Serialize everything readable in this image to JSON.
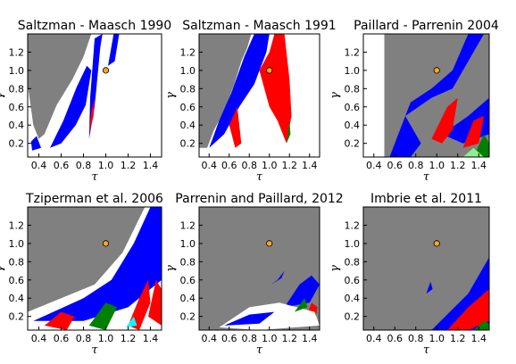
{
  "chart_data": [
    {
      "type": "heatmap",
      "title": "Saltzman - Maasch 1990",
      "xlabel": "τ",
      "ylabel": "γ",
      "xlim": [
        0.3,
        1.5
      ],
      "ylim": [
        0.05,
        1.4
      ],
      "xticks": [
        "0.4",
        "0.6",
        "0.8",
        "1.0",
        "1.2",
        "1.4"
      ],
      "yticks": [
        "0.2",
        "0.4",
        "0.6",
        "0.8",
        "1.0",
        "1.2"
      ],
      "reference_point": {
        "x": 1.0,
        "y": 1.0
      },
      "gray_region": [
        [
          0.3,
          1.4
        ],
        [
          0.3,
          0.85
        ],
        [
          0.35,
          0.4
        ],
        [
          0.4,
          0.25
        ],
        [
          0.45,
          0.3
        ],
        [
          0.56,
          0.62
        ],
        [
          0.7,
          0.9
        ],
        [
          0.8,
          1.15
        ],
        [
          0.87,
          1.4
        ]
      ],
      "color_regions": [
        {
          "color": "#0000ff",
          "points": [
            [
              0.5,
              0.15
            ],
            [
              0.62,
              0.45
            ],
            [
              0.74,
              0.82
            ],
            [
              0.83,
              1.05
            ],
            [
              0.87,
              1.0
            ],
            [
              0.82,
              0.62
            ],
            [
              0.73,
              0.4
            ],
            [
              0.6,
              0.2
            ]
          ]
        },
        {
          "color": "#0000ff",
          "points": [
            [
              0.34,
              0.12
            ],
            [
              0.42,
              0.15
            ],
            [
              0.38,
              0.28
            ],
            [
              0.33,
              0.22
            ]
          ]
        },
        {
          "color": "#0000ff",
          "points": [
            [
              0.85,
              0.25
            ],
            [
              0.9,
              0.6
            ],
            [
              0.95,
              1.25
            ],
            [
              0.97,
              1.4
            ],
            [
              0.9,
              1.35
            ],
            [
              0.86,
              0.7
            ]
          ]
        },
        {
          "color": "#0000ff",
          "points": [
            [
              1.02,
              1.05
            ],
            [
              1.07,
              1.4
            ],
            [
              1.12,
              1.4
            ],
            [
              1.08,
              1.1
            ]
          ]
        },
        {
          "color": "#ff0000",
          "points": [
            [
              0.85,
              0.3
            ],
            [
              0.89,
              0.5
            ],
            [
              0.9,
              0.7
            ],
            [
              0.87,
              0.55
            ]
          ]
        }
      ]
    },
    {
      "type": "heatmap",
      "title": "Saltzman - Maasch 1991",
      "xlabel": "τ",
      "ylabel": "γ",
      "xlim": [
        0.3,
        1.5
      ],
      "ylim": [
        0.05,
        1.4
      ],
      "xticks": [
        "0.4",
        "0.6",
        "0.8",
        "1.0",
        "1.2",
        "1.4"
      ],
      "yticks": [
        "0.2",
        "0.4",
        "0.6",
        "0.8",
        "1.0",
        "1.2"
      ],
      "reference_point": {
        "x": 1.0,
        "y": 1.0
      },
      "gray_region": [
        [
          0.3,
          1.4
        ],
        [
          0.3,
          0.15
        ],
        [
          0.38,
          0.15
        ],
        [
          0.45,
          0.35
        ],
        [
          0.55,
          0.55
        ],
        [
          0.65,
          0.85
        ],
        [
          0.72,
          1.1
        ],
        [
          0.78,
          1.25
        ],
        [
          0.82,
          1.4
        ]
      ],
      "color_regions": [
        {
          "color": "#0000ff",
          "points": [
            [
              0.4,
              0.15
            ],
            [
              0.55,
              0.3
            ],
            [
              0.7,
              0.6
            ],
            [
              0.85,
              0.85
            ],
            [
              0.97,
              1.2
            ],
            [
              1.0,
              1.4
            ],
            [
              0.85,
              1.4
            ],
            [
              0.75,
              1.15
            ],
            [
              0.62,
              0.75
            ],
            [
              0.5,
              0.45
            ]
          ]
        },
        {
          "color": "#0000ff",
          "points": [
            [
              1.0,
              0.9
            ],
            [
              1.05,
              1.4
            ],
            [
              1.12,
              1.4
            ],
            [
              1.08,
              1.0
            ]
          ]
        },
        {
          "color": "#ff0000",
          "points": [
            [
              0.9,
              1.0
            ],
            [
              1.0,
              0.6
            ],
            [
              1.08,
              0.45
            ],
            [
              1.17,
              0.2
            ],
            [
              1.22,
              0.5
            ],
            [
              1.2,
              0.9
            ],
            [
              1.15,
              1.4
            ],
            [
              1.05,
              1.4
            ],
            [
              1.0,
              1.2
            ]
          ]
        },
        {
          "color": "#ff0000",
          "points": [
            [
              0.6,
              0.4
            ],
            [
              0.68,
              0.6
            ],
            [
              0.72,
              0.2
            ],
            [
              0.66,
              0.15
            ]
          ]
        },
        {
          "color": "#008000",
          "points": [
            [
              1.17,
              0.2
            ],
            [
              1.2,
              0.45
            ],
            [
              1.21,
              0.3
            ]
          ]
        }
      ]
    },
    {
      "type": "heatmap",
      "title": "Paillard - Parrenin 2004",
      "xlabel": "τ",
      "ylabel": "γ",
      "xlim": [
        0.3,
        1.5
      ],
      "ylim": [
        0.05,
        1.4
      ],
      "xticks": [
        "0.4",
        "0.6",
        "0.8",
        "1.0",
        "1.2",
        "1.4"
      ],
      "yticks": [
        "0.2",
        "0.4",
        "0.6",
        "0.8",
        "1.0",
        "1.2"
      ],
      "reference_point": {
        "x": 1.0,
        "y": 1.0
      },
      "gray_region": [
        [
          0.5,
          1.4
        ],
        [
          1.5,
          1.4
        ],
        [
          1.5,
          0.05
        ],
        [
          0.5,
          0.05
        ]
      ],
      "color_regions": [
        {
          "color": "#0000ff",
          "points": [
            [
              0.7,
              0.5
            ],
            [
              0.95,
              0.7
            ],
            [
              1.15,
              0.8
            ],
            [
              1.35,
              1.2
            ],
            [
              1.45,
              1.4
            ],
            [
              1.3,
              1.4
            ],
            [
              1.15,
              1.0
            ],
            [
              0.95,
              0.8
            ],
            [
              0.75,
              0.65
            ]
          ]
        },
        {
          "color": "#0000ff",
          "points": [
            [
              0.55,
              0.05
            ],
            [
              0.7,
              0.5
            ],
            [
              0.85,
              0.2
            ],
            [
              0.75,
              0.05
            ]
          ]
        },
        {
          "color": "#0000ff",
          "points": [
            [
              1.05,
              0.3
            ],
            [
              1.3,
              0.5
            ],
            [
              1.5,
              0.7
            ],
            [
              1.5,
              0.3
            ],
            [
              1.25,
              0.2
            ]
          ]
        },
        {
          "color": "#ff0000",
          "points": [
            [
              0.95,
              0.25
            ],
            [
              1.1,
              0.6
            ],
            [
              1.2,
              0.7
            ],
            [
              1.15,
              0.35
            ],
            [
              1.05,
              0.2
            ]
          ]
        },
        {
          "color": "#ff0000",
          "points": [
            [
              1.25,
              0.15
            ],
            [
              1.35,
              0.45
            ],
            [
              1.45,
              0.5
            ],
            [
              1.4,
              0.2
            ]
          ]
        },
        {
          "color": "#008000",
          "points": [
            [
              1.35,
              0.05
            ],
            [
              1.45,
              0.3
            ],
            [
              1.5,
              0.2
            ],
            [
              1.5,
              0.05
            ]
          ]
        },
        {
          "color": "#90ee90",
          "points": [
            [
              1.25,
              0.05
            ],
            [
              1.35,
              0.15
            ],
            [
              1.45,
              0.05
            ]
          ]
        }
      ]
    },
    {
      "type": "heatmap",
      "title": "Tziperman et al. 2006",
      "xlabel": "τ",
      "ylabel": "γ",
      "xlim": [
        0.3,
        1.5
      ],
      "ylim": [
        0.05,
        1.4
      ],
      "xticks": [
        "0.4",
        "0.6",
        "0.8",
        "1.0",
        "1.2",
        "1.4"
      ],
      "yticks": [
        "0.2",
        "0.4",
        "0.6",
        "0.8",
        "1.0",
        "1.2"
      ],
      "reference_point": {
        "x": 1.0,
        "y": 1.0
      },
      "gray_region": [
        [
          0.3,
          1.4
        ],
        [
          0.3,
          0.25
        ],
        [
          0.6,
          0.4
        ],
        [
          0.9,
          0.55
        ],
        [
          1.15,
          0.9
        ],
        [
          1.35,
          1.4
        ]
      ],
      "color_regions": [
        {
          "color": "#0000ff",
          "points": [
            [
              0.35,
              0.15
            ],
            [
              0.8,
              0.4
            ],
            [
              1.05,
              0.6
            ],
            [
              1.25,
              1.0
            ],
            [
              1.4,
              1.4
            ],
            [
              1.5,
              1.4
            ],
            [
              1.5,
              0.6
            ],
            [
              1.2,
              0.3
            ],
            [
              0.8,
              0.15
            ]
          ]
        },
        {
          "color": "#ff0000",
          "points": [
            [
              0.45,
              0.1
            ],
            [
              0.6,
              0.25
            ],
            [
              0.72,
              0.2
            ],
            [
              0.65,
              0.05
            ]
          ]
        },
        {
          "color": "#ff0000",
          "points": [
            [
              1.2,
              0.1
            ],
            [
              1.3,
              0.4
            ],
            [
              1.38,
              0.6
            ],
            [
              1.4,
              0.35
            ],
            [
              1.3,
              0.05
            ]
          ]
        },
        {
          "color": "#ff0000",
          "points": [
            [
              1.38,
              0.2
            ],
            [
              1.45,
              0.6
            ],
            [
              1.5,
              0.5
            ],
            [
              1.5,
              0.1
            ]
          ]
        },
        {
          "color": "#008000",
          "points": [
            [
              0.85,
              0.1
            ],
            [
              1.0,
              0.35
            ],
            [
              1.1,
              0.3
            ],
            [
              1.0,
              0.05
            ]
          ]
        },
        {
          "color": "#00ffff",
          "points": [
            [
              1.18,
              0.08
            ],
            [
              1.25,
              0.2
            ],
            [
              1.28,
              0.1
            ]
          ]
        }
      ]
    },
    {
      "type": "heatmap",
      "title": "Parrenin and Paillard, 2012",
      "xlabel": "τ",
      "ylabel": "γ",
      "xlim": [
        0.3,
        1.5
      ],
      "ylim": [
        0.05,
        1.4
      ],
      "xticks": [
        "0.4",
        "0.6",
        "0.8",
        "1.0",
        "1.2",
        "1.4"
      ],
      "yticks": [
        "0.2",
        "0.4",
        "0.6",
        "0.8",
        "1.0",
        "1.2"
      ],
      "reference_point": {
        "x": 1.0,
        "y": 1.0
      },
      "gray_region": [
        [
          0.3,
          1.4
        ],
        [
          1.5,
          1.4
        ],
        [
          1.5,
          0.05
        ],
        [
          0.3,
          0.05
        ]
      ],
      "color_regions": [
        {
          "color": "#0000ff",
          "points": [
            [
              1.15,
              0.3
            ],
            [
              1.3,
              0.55
            ],
            [
              1.42,
              0.65
            ],
            [
              1.5,
              0.55
            ],
            [
              1.4,
              0.35
            ]
          ]
        },
        {
          "color": "#0000ff",
          "points": [
            [
              1.02,
              0.55
            ],
            [
              1.12,
              0.62
            ],
            [
              1.15,
              0.7
            ],
            [
              1.08,
              0.6
            ]
          ]
        },
        {
          "color": "#ff0000",
          "points": [
            [
              1.35,
              0.15
            ],
            [
              1.42,
              0.35
            ],
            [
              1.48,
              0.3
            ],
            [
              1.45,
              0.15
            ]
          ]
        },
        {
          "color": "#ffffff",
          "points": [
            [
              0.5,
              0.08
            ],
            [
              0.8,
              0.3
            ],
            [
              1.1,
              0.35
            ],
            [
              1.45,
              0.25
            ],
            [
              1.5,
              0.1
            ],
            [
              0.9,
              0.05
            ]
          ]
        },
        {
          "color": "#0000ff",
          "points": [
            [
              0.55,
              0.1
            ],
            [
              0.8,
              0.22
            ],
            [
              1.05,
              0.25
            ],
            [
              0.9,
              0.12
            ]
          ]
        },
        {
          "color": "#008000",
          "points": [
            [
              1.25,
              0.25
            ],
            [
              1.35,
              0.4
            ],
            [
              1.38,
              0.3
            ]
          ]
        }
      ]
    },
    {
      "type": "heatmap",
      "title": "Imbrie et al. 2011",
      "xlabel": "τ",
      "ylabel": "γ",
      "xlim": [
        0.3,
        1.5
      ],
      "ylim": [
        0.05,
        1.4
      ],
      "xticks": [
        "0.4",
        "0.6",
        "0.8",
        "1.0",
        "1.2",
        "1.4"
      ],
      "yticks": [
        "0.2",
        "0.4",
        "0.6",
        "0.8",
        "1.0",
        "1.2"
      ],
      "reference_point": {
        "x": 1.0,
        "y": 1.0
      },
      "gray_region": [
        [
          0.3,
          1.4
        ],
        [
          1.5,
          1.4
        ],
        [
          1.5,
          0.05
        ],
        [
          0.3,
          0.05
        ]
      ],
      "color_regions": [
        {
          "color": "#0000ff",
          "points": [
            [
              0.95,
              0.05
            ],
            [
              1.3,
              0.45
            ],
            [
              1.5,
              0.85
            ],
            [
              1.5,
              0.05
            ]
          ]
        },
        {
          "color": "#ff0000",
          "points": [
            [
              1.1,
              0.05
            ],
            [
              1.3,
              0.3
            ],
            [
              1.5,
              0.5
            ],
            [
              1.5,
              0.15
            ],
            [
              1.3,
              0.05
            ]
          ]
        },
        {
          "color": "#008000",
          "points": [
            [
              1.35,
              0.05
            ],
            [
              1.45,
              0.15
            ],
            [
              1.5,
              0.12
            ],
            [
              1.5,
              0.05
            ]
          ]
        },
        {
          "color": "#0000ff",
          "points": [
            [
              0.9,
              0.45
            ],
            [
              0.94,
              0.58
            ],
            [
              0.96,
              0.5
            ]
          ]
        }
      ]
    }
  ]
}
